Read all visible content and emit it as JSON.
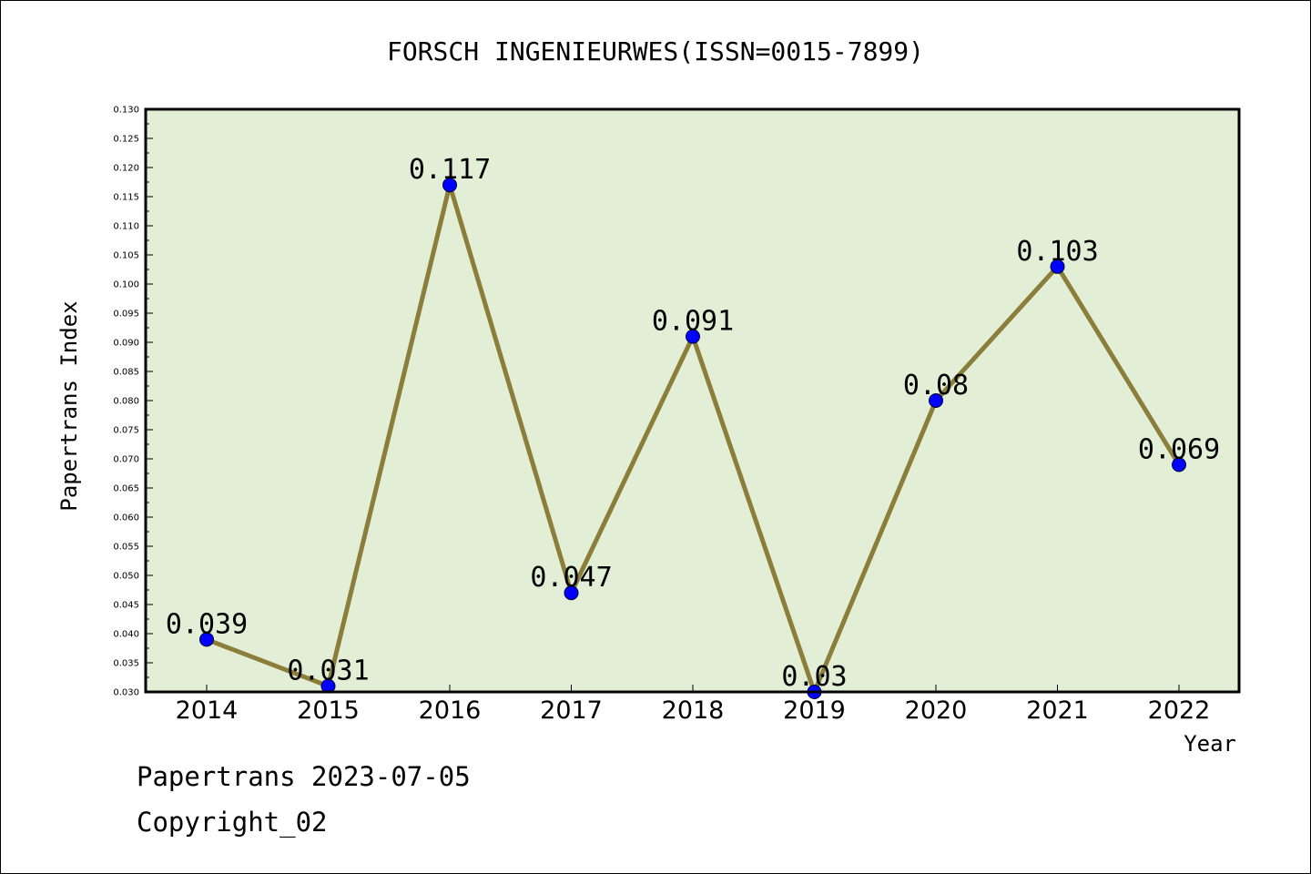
{
  "chart_data": {
    "type": "line",
    "title": "FORSCH INGENIEURWES(ISSN=0015-7899)",
    "xlabel": "Year",
    "ylabel": "Papertrans Index",
    "categories": [
      "2014",
      "2015",
      "2016",
      "2017",
      "2018",
      "2019",
      "2020",
      "2021",
      "2022"
    ],
    "values": [
      0.039,
      0.031,
      0.117,
      0.047,
      0.091,
      0.03,
      0.08,
      0.103,
      0.069
    ],
    "data_labels": [
      "0.039",
      "0.031",
      "0.117",
      "0.047",
      "0.091",
      "0.03",
      "0.08",
      "0.103",
      "0.069"
    ],
    "ylim": [
      0.03,
      0.13
    ],
    "y_ticks": [
      "0.030",
      "0.035",
      "0.040",
      "0.045",
      "0.050",
      "0.055",
      "0.060",
      "0.065",
      "0.070",
      "0.075",
      "0.080",
      "0.085",
      "0.090",
      "0.095",
      "0.100",
      "0.105",
      "0.110",
      "0.115",
      "0.120",
      "0.125",
      "0.130"
    ],
    "grid": false,
    "colors": {
      "plot_background": "#e2efd6",
      "line": "#8b7d3a",
      "marker": "#0000ff"
    }
  },
  "footer": {
    "date_line": "Papertrans 2023-07-05",
    "copyright": "Copyright_02"
  }
}
